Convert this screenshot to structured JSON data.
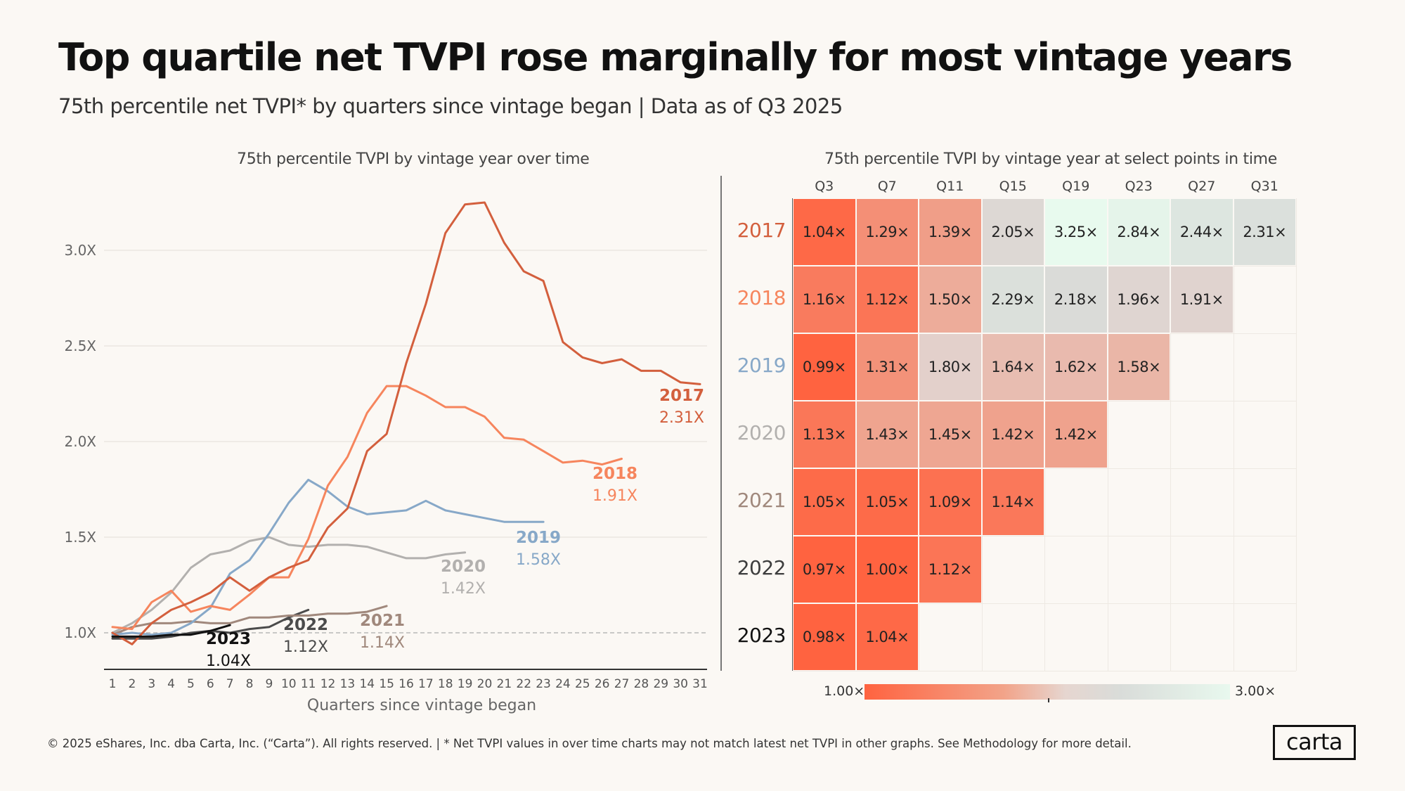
{
  "page": {
    "title": "Top quartile net TVPI rose marginally for most vintage years",
    "subtitle": "75th percentile net TVPI* by quarters since vintage began | Data as of Q3 2025",
    "footer": "© 2025 eShares, Inc. dba Carta, Inc. (“Carta”). All rights reserved.  |  * Net TVPI values in over time charts may not match latest net TVPI in other  graphs. See Methodology for more detail.",
    "logo": "carta"
  },
  "chart_data": [
    {
      "type": "line",
      "title": "75th percentile TVPI by vintage year over time",
      "xlabel": "Quarters since vintage began",
      "ylabel": "",
      "x_ticks": [
        "1",
        "2",
        "3",
        "4",
        "5",
        "6",
        "7",
        "8",
        "9",
        "10",
        "11",
        "12",
        "13",
        "14",
        "15",
        "16",
        "17",
        "18",
        "19",
        "20",
        "21",
        "22",
        "23",
        "24",
        "25",
        "26",
        "27",
        "28",
        "29",
        "30",
        "31"
      ],
      "y_ticks": [
        "1.0X",
        "1.5X",
        "2.0X",
        "2.5X",
        "3.0X"
      ],
      "y_tick_values": [
        1.0,
        1.5,
        2.0,
        2.5,
        3.0
      ],
      "xlim": [
        1,
        31
      ],
      "ylim": [
        0.8,
        3.3
      ],
      "grid": true,
      "reference_line": 1.0,
      "series": [
        {
          "name": "2017",
          "end_label": "2.31X",
          "color": "#d35f3d",
          "values": [
            1.0,
            0.94,
            1.05,
            1.12,
            1.16,
            1.21,
            1.29,
            1.22,
            1.29,
            1.34,
            1.38,
            1.55,
            1.65,
            1.95,
            2.04,
            2.41,
            2.72,
            3.09,
            3.24,
            3.25,
            3.04,
            2.89,
            2.84,
            2.52,
            2.44,
            2.41,
            2.43,
            2.37,
            2.37,
            2.31,
            2.3
          ]
        },
        {
          "name": "2018",
          "end_label": "1.91X",
          "color": "#f6855d",
          "values": [
            1.03,
            1.02,
            1.16,
            1.22,
            1.11,
            1.14,
            1.12,
            1.2,
            1.29,
            1.29,
            1.49,
            1.77,
            1.92,
            2.15,
            2.29,
            2.29,
            2.24,
            2.18,
            2.18,
            2.13,
            2.02,
            2.01,
            1.95,
            1.89,
            1.9,
            1.88,
            1.91
          ]
        },
        {
          "name": "2019",
          "end_label": "1.58X",
          "color": "#87a8c8",
          "values": [
            0.99,
            1.0,
            0.99,
            1.0,
            1.05,
            1.13,
            1.31,
            1.38,
            1.52,
            1.68,
            1.8,
            1.74,
            1.66,
            1.62,
            1.63,
            1.64,
            1.69,
            1.64,
            1.62,
            1.6,
            1.58,
            1.58,
            1.58
          ]
        },
        {
          "name": "2020",
          "end_label": "1.42X",
          "color": "#b2b0ae",
          "values": [
            1.0,
            1.05,
            1.12,
            1.21,
            1.34,
            1.41,
            1.43,
            1.48,
            1.5,
            1.46,
            1.45,
            1.46,
            1.46,
            1.45,
            1.42,
            1.39,
            1.39,
            1.41,
            1.42
          ]
        },
        {
          "name": "2021",
          "end_label": "1.14X",
          "color": "#a0887c",
          "values": [
            0.99,
            1.03,
            1.05,
            1.05,
            1.06,
            1.05,
            1.05,
            1.08,
            1.08,
            1.09,
            1.09,
            1.1,
            1.1,
            1.11,
            1.14
          ]
        },
        {
          "name": "2022",
          "end_label": "1.12X",
          "color": "#4b4b4b",
          "values": [
            0.97,
            0.97,
            0.97,
            0.98,
            1.0,
            1.01,
            1.0,
            1.02,
            1.03,
            1.08,
            1.12
          ]
        },
        {
          "name": "2023",
          "end_label": "1.04X",
          "color": "#111111",
          "values": [
            0.98,
            0.98,
            0.98,
            0.99,
            0.99,
            1.01,
            1.04
          ]
        }
      ]
    },
    {
      "type": "heatmap",
      "title": "75th percentile TVPI by vintage year at select points in time",
      "columns": [
        "Q3",
        "Q7",
        "Q11",
        "Q15",
        "Q19",
        "Q23",
        "Q27",
        "Q31"
      ],
      "rows": [
        {
          "year": "2017",
          "color": "#d35f3d",
          "cells": [
            "1.04×",
            "1.29×",
            "1.39×",
            "2.05×",
            "3.25×",
            "2.84×",
            "2.44×",
            "2.31×"
          ],
          "values": [
            1.04,
            1.29,
            1.39,
            2.05,
            3.25,
            2.84,
            2.44,
            2.31
          ]
        },
        {
          "year": "2018",
          "color": "#f6855d",
          "cells": [
            "1.16×",
            "1.12×",
            "1.50×",
            "2.29×",
            "2.18×",
            "1.96×",
            "1.91×"
          ],
          "values": [
            1.16,
            1.12,
            1.5,
            2.29,
            2.18,
            1.96,
            1.91
          ]
        },
        {
          "year": "2019",
          "color": "#87a8c8",
          "cells": [
            "0.99×",
            "1.31×",
            "1.80×",
            "1.64×",
            "1.62×",
            "1.58×"
          ],
          "values": [
            0.99,
            1.31,
            1.8,
            1.64,
            1.62,
            1.58
          ]
        },
        {
          "year": "2020",
          "color": "#b2b0ae",
          "cells": [
            "1.13×",
            "1.43×",
            "1.45×",
            "1.42×",
            "1.42×"
          ],
          "values": [
            1.13,
            1.43,
            1.45,
            1.42,
            1.42
          ]
        },
        {
          "year": "2021",
          "color": "#a0887c",
          "cells": [
            "1.05×",
            "1.05×",
            "1.09×",
            "1.14×"
          ],
          "values": [
            1.05,
            1.05,
            1.09,
            1.14
          ]
        },
        {
          "year": "2022",
          "color": "#3d3d3d",
          "cells": [
            "0.97×",
            "1.00×",
            "1.12×"
          ],
          "values": [
            0.97,
            1.0,
            1.12
          ]
        },
        {
          "year": "2023",
          "color": "#111111",
          "cells": [
            "0.98×",
            "1.04×"
          ],
          "values": [
            0.98,
            1.04
          ]
        }
      ],
      "scale": {
        "min_label": "1.00×",
        "max_label": "3.00×",
        "min": 1.0,
        "max": 3.0
      }
    }
  ]
}
